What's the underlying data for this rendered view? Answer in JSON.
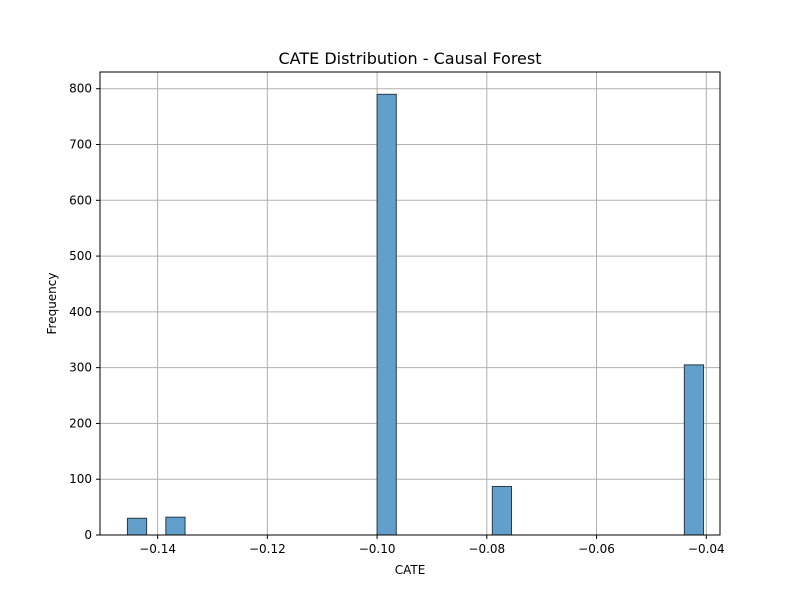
{
  "chart_data": {
    "type": "bar",
    "title": "CATE Distribution - Causal Forest",
    "xlabel": "CATE",
    "ylabel": "Frequency",
    "xlim": [
      -0.1505,
      -0.0375
    ],
    "ylim": [
      0,
      830
    ],
    "grid": true,
    "bar_color": "#629fca",
    "bar_edge_color": "#2b3a47",
    "x_ticks": [
      -0.14,
      -0.12,
      -0.1,
      -0.08,
      -0.06,
      -0.04
    ],
    "x_tick_labels": [
      "−0.14",
      "−0.12",
      "−0.10",
      "−0.08",
      "−0.06",
      "−0.04"
    ],
    "y_ticks": [
      0,
      100,
      200,
      300,
      400,
      500,
      600,
      700,
      800
    ],
    "y_tick_labels": [
      "0",
      "100",
      "200",
      "300",
      "400",
      "500",
      "600",
      "700",
      "800"
    ],
    "bin_width": 0.0035,
    "bins": [
      {
        "x0": -0.1455,
        "x1": -0.142,
        "count": 30
      },
      {
        "x0": -0.1385,
        "x1": -0.135,
        "count": 32
      },
      {
        "x0": -0.1,
        "x1": -0.0965,
        "count": 790
      },
      {
        "x0": -0.079,
        "x1": -0.0755,
        "count": 87
      },
      {
        "x0": -0.044,
        "x1": -0.0405,
        "count": 305
      }
    ]
  }
}
